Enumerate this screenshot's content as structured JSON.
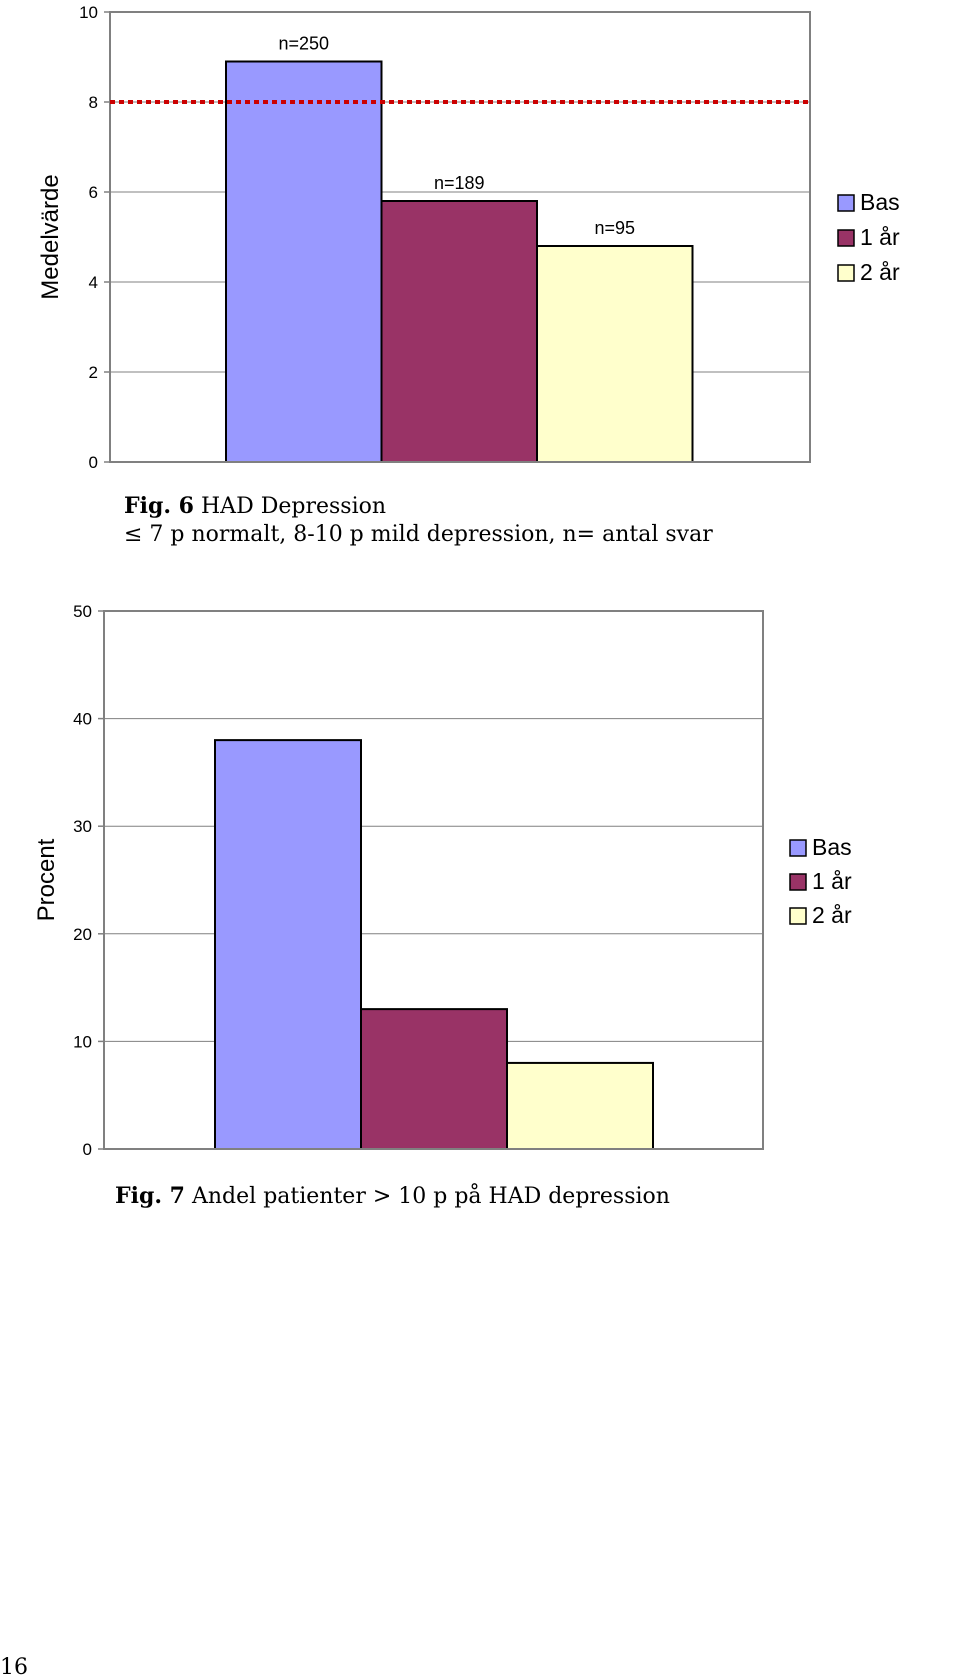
{
  "chart_data": [
    {
      "type": "bar",
      "ylabel": "Medelvärde",
      "ylim": [
        0,
        10
      ],
      "yticks": [
        0,
        2,
        4,
        6,
        8,
        10
      ],
      "grid": true,
      "legend_position": "right",
      "series": [
        {
          "name": "Bas",
          "color": "#9999ff",
          "value": 8.9,
          "label": "n=250"
        },
        {
          "name": "1 år",
          "color": "#993366",
          "value": 5.8,
          "label": "n=189"
        },
        {
          "name": "2 år",
          "color": "#ffffcc",
          "value": 4.8,
          "label": "n=95"
        }
      ],
      "reference_line": {
        "value": 8,
        "color": "#cc0000",
        "style": "dotted"
      },
      "caption": {
        "fig": "Fig. 6",
        "title": "HAD Depression",
        "line2": "≤ 7 p normalt, 8-10 p mild depression, n= antal svar"
      }
    },
    {
      "type": "bar",
      "ylabel": "Procent",
      "ylim": [
        0,
        50
      ],
      "yticks": [
        0,
        10,
        20,
        30,
        40,
        50
      ],
      "grid": true,
      "legend_position": "right",
      "series": [
        {
          "name": "Bas",
          "color": "#9999ff",
          "value": 38
        },
        {
          "name": "1 år",
          "color": "#993366",
          "value": 13
        },
        {
          "name": "2 år",
          "color": "#ffffcc",
          "value": 8
        }
      ],
      "caption": {
        "fig": "Fig. 7",
        "title": "Andel patienter > 10 p på HAD depression"
      }
    }
  ],
  "page_number": "16"
}
